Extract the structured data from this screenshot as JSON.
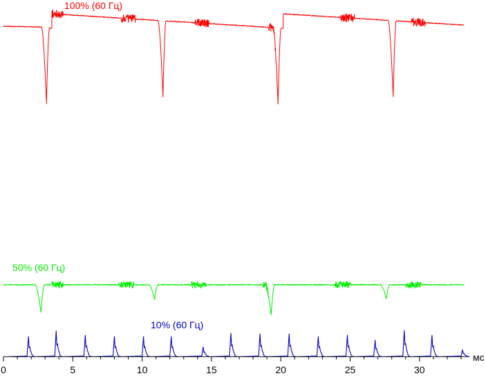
{
  "chart_data": {
    "type": "line",
    "title": "",
    "xlabel": "",
    "ylabel": "",
    "x_unit_label": "мс",
    "xlim": [
      0,
      33.5
    ],
    "x_ticks": [
      0,
      5,
      10,
      15,
      20,
      25,
      30
    ],
    "grid": false,
    "series": [
      {
        "name": "100% (60 Гц)",
        "color": "#ff0000",
        "dips_ms": [
          3.1,
          11.5,
          19.8,
          28.1
        ],
        "high_frequency_bursts_ms": [
          [
            3.5,
            4.3
          ],
          [
            8.5,
            9.5
          ],
          [
            13.8,
            14.8
          ],
          [
            19.1,
            19.7
          ],
          [
            24.3,
            25.3
          ],
          [
            29.4,
            30.4
          ]
        ]
      },
      {
        "name": "50% (60 Гц)",
        "color": "#00ee00",
        "dips_ms": [
          2.7,
          10.9,
          19.3,
          27.6
        ],
        "high_frequency_bursts_ms": [
          [
            3.5,
            4.3
          ],
          [
            8.3,
            9.4
          ],
          [
            13.5,
            14.6
          ],
          [
            18.7,
            19.1
          ],
          [
            23.9,
            25.0
          ],
          [
            29.0,
            30.1
          ]
        ]
      },
      {
        "name": "10% (60 Гц)",
        "color": "#0000cc",
        "spikes_ms": [
          1.8,
          3.8,
          5.9,
          8.0,
          10.1,
          12.1,
          14.4,
          16.4,
          18.5,
          20.6,
          22.7,
          24.8,
          26.8,
          28.9,
          30.9,
          33.1
        ]
      }
    ]
  }
}
